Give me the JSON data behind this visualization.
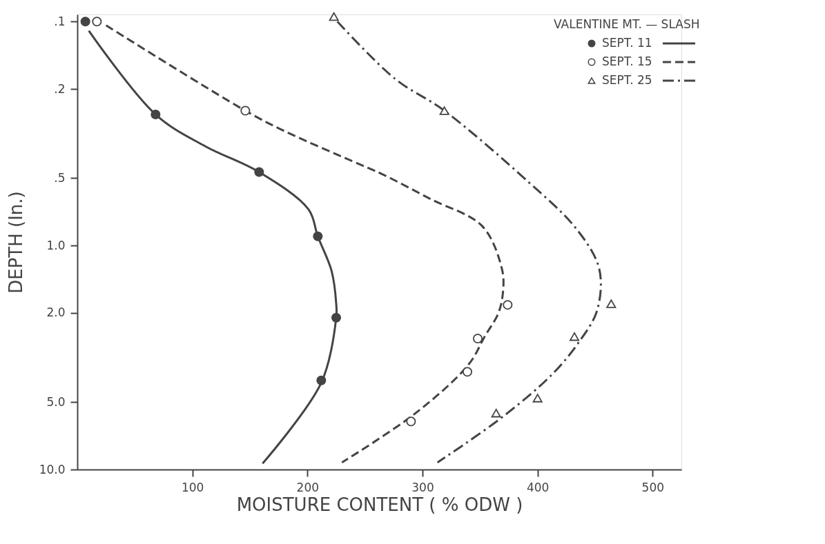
{
  "chart_data": {
    "type": "line",
    "xlabel": "MOISTURE  CONTENT  ( % ODW )",
    "ylabel": "DEPTH  (In.)",
    "legend_title": "VALENTINE  MT. — SLASH",
    "xlim": [
      0,
      525
    ],
    "xticks": [
      100,
      200,
      300,
      400,
      500
    ],
    "ylim": [
      10,
      0.093
    ],
    "yticks": [
      {
        "value": 0.1,
        "label": ".1"
      },
      {
        "value": 0.2,
        "label": ".2"
      },
      {
        "value": 0.5,
        "label": ".5"
      },
      {
        "value": 1,
        "label": "1.0"
      },
      {
        "value": 2,
        "label": "2.0"
      },
      {
        "value": 5,
        "label": "5.0"
      },
      {
        "value": 10,
        "label": "10.0"
      }
    ],
    "log": "y",
    "grid": false,
    "legend": "top right",
    "series": [
      {
        "name": "SEPT. 11",
        "type": "scatter",
        "marker": "circle",
        "color": "#444444",
        "x": [
          7,
          68,
          158,
          209,
          225,
          212
        ],
        "values": [
          0.1,
          0.26,
          0.47,
          0.91,
          2.1,
          4.0
        ]
      },
      {
        "name": "SEPT. 15",
        "type": "scatter",
        "marker": "circle-open",
        "color": "#444444",
        "x": [
          17,
          146,
          374,
          348,
          339,
          290
        ],
        "values": [
          0.1,
          0.25,
          1.84,
          2.6,
          3.66,
          6.1
        ]
      },
      {
        "name": "SEPT. 25",
        "type": "scatter",
        "marker": "triangle-open",
        "color": "#444444",
        "x": [
          223,
          319,
          464,
          432,
          400,
          364
        ],
        "values": [
          0.095,
          0.25,
          1.82,
          2.55,
          4.8,
          5.6
        ]
      },
      {
        "line_style": "solid",
        "color": "#444444",
        "x": [
          10,
          68,
          111,
          158,
          201,
          209,
          221,
          225,
          225,
          212,
          161
        ],
        "values": [
          0.11,
          0.26,
          0.36,
          0.47,
          0.69,
          0.91,
          1.3,
          1.82,
          2.1,
          4.1,
          9.4
        ]
      },
      {
        "line_style": "dashed",
        "color": "#444444",
        "x": [
          25,
          146,
          181,
          239,
          265,
          307,
          352,
          369,
          370,
          366,
          354,
          340,
          294,
          230
        ],
        "values": [
          0.104,
          0.25,
          0.31,
          0.42,
          0.48,
          0.62,
          0.82,
          1.27,
          1.6,
          2.0,
          2.55,
          3.4,
          5.6,
          9.3
        ]
      },
      {
        "line_style": "dashdot",
        "color": "#444444",
        "x": [
          226,
          276,
          319,
          392,
          431,
          451,
          455,
          451,
          437,
          414,
          370,
          313
        ],
        "values": [
          0.1,
          0.18,
          0.25,
          0.52,
          0.81,
          1.16,
          1.45,
          2.0,
          2.65,
          3.7,
          5.8,
          9.3
        ]
      }
    ]
  }
}
